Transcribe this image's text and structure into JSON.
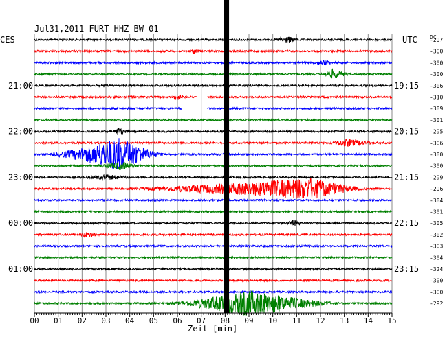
{
  "header": {
    "date_station": "Jul31,2011   FURT HHZ BW 01",
    "left_tz": "CES",
    "right_tz": "UTC",
    "dc_label": "DC"
  },
  "chart_data": {
    "type": "line",
    "title": "Jul31,2011   FURT HHZ BW 01",
    "xlabel": "Zeit [min]",
    "x_ticks": [
      "00",
      "01",
      "02",
      "03",
      "04",
      "05",
      "06",
      "07",
      "08",
      "09",
      "10",
      "11",
      "12",
      "13",
      "14",
      "15"
    ],
    "xlim": [
      0,
      15
    ],
    "grid": true,
    "trace_colors": [
      "#000000",
      "#ff0000",
      "#0000ff",
      "#008000"
    ],
    "left_time_labels": [
      {
        "row": 4,
        "text": "21:00"
      },
      {
        "row": 8,
        "text": "22:00"
      },
      {
        "row": 12,
        "text": "23:00"
      },
      {
        "row": 16,
        "text": "00:00"
      },
      {
        "row": 20,
        "text": "01:00"
      }
    ],
    "right_time_labels": [
      {
        "row": 4,
        "text": "19:15"
      },
      {
        "row": 8,
        "text": "20:15"
      },
      {
        "row": 12,
        "text": "21:15"
      },
      {
        "row": 16,
        "text": "22:15"
      },
      {
        "row": 20,
        "text": "23:15"
      }
    ],
    "dc_values": [
      "-297",
      "-300",
      "-300",
      "-300",
      "-306",
      "-310",
      "-309",
      "-301",
      "-295",
      "-306",
      "-300",
      "-300",
      "-299",
      "-296",
      "-304",
      "-301",
      "-305",
      "-302",
      "-303",
      "-304",
      "-324",
      "-300",
      "-300",
      "-292"
    ],
    "events": [
      {
        "row": 0,
        "start": 10.0,
        "end": 11.2,
        "peak": 10.6,
        "amp": 4
      },
      {
        "row": 1,
        "start": 6.5,
        "end": 7.0,
        "peak": 6.7,
        "amp": 3
      },
      {
        "row": 2,
        "start": 11.8,
        "end": 12.5,
        "peak": 12.1,
        "amp": 4
      },
      {
        "row": 3,
        "start": 12.0,
        "end": 13.3,
        "peak": 12.5,
        "amp": 6
      },
      {
        "row": 5,
        "start": 5.7,
        "end": 6.3,
        "peak": 6.0,
        "amp": 3
      },
      {
        "row": 8,
        "start": 3.3,
        "end": 4.0,
        "peak": 3.6,
        "amp": 5
      },
      {
        "row": 9,
        "start": 12.3,
        "end": 14.5,
        "peak": 13.1,
        "amp": 5
      },
      {
        "row": 10,
        "start": 0.5,
        "end": 5.5,
        "peak": 3.6,
        "amp": 24
      },
      {
        "row": 11,
        "start": 2.5,
        "end": 4.5,
        "peak": 3.6,
        "amp": 5
      },
      {
        "row": 12,
        "start": 2.0,
        "end": 4.2,
        "peak": 3.0,
        "amp": 3
      },
      {
        "row": 13,
        "start": 3.5,
        "end": 14.0,
        "peak": 11.6,
        "amp": 15
      },
      {
        "row": 16,
        "start": 10.5,
        "end": 11.3,
        "peak": 10.9,
        "amp": 4
      },
      {
        "row": 17,
        "start": 1.8,
        "end": 2.8,
        "peak": 2.2,
        "amp": 3
      },
      {
        "row": 23,
        "start": 5.5,
        "end": 13.0,
        "peak": 9.0,
        "amp": 18
      }
    ],
    "gaps": [
      {
        "row": 5,
        "start": 6.8,
        "end": 7.25
      },
      {
        "row": 6,
        "start": 6.2,
        "end": 7.25
      }
    ],
    "spike": {
      "x": 8.05
    }
  }
}
